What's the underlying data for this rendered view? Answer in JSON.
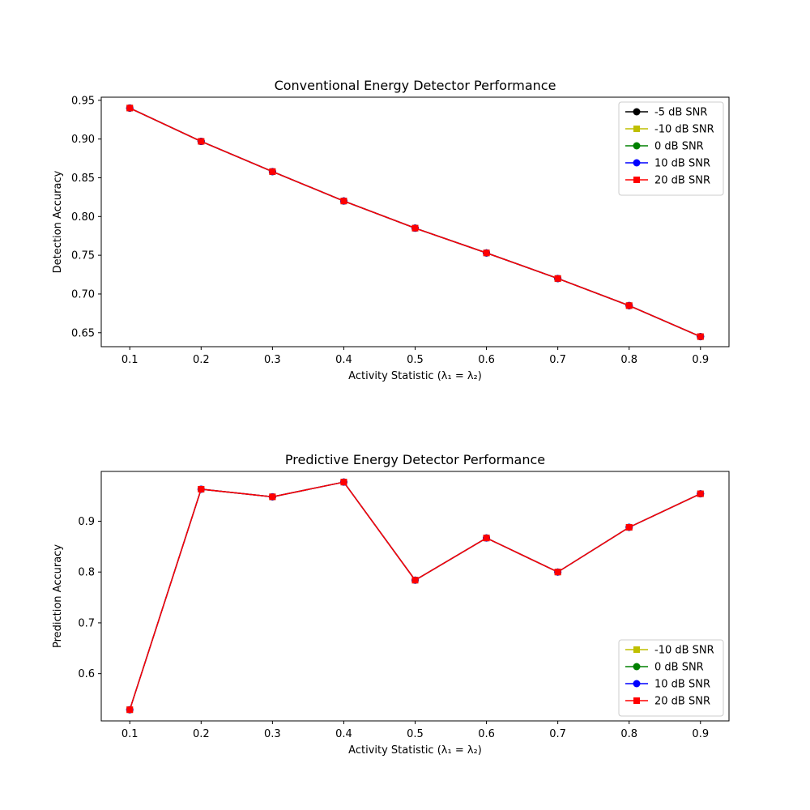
{
  "chart_data": [
    {
      "type": "line",
      "title": "Conventional Energy Detector Performance",
      "xlabel": "Activity Statistic (λ₁ = λ₂)",
      "ylabel": "Detection Accuracy",
      "x": [
        0.1,
        0.2,
        0.3,
        0.4,
        0.5,
        0.6,
        0.7,
        0.8,
        0.9
      ],
      "xlim": [
        0.06,
        0.94
      ],
      "ylim": [
        0.632,
        0.954
      ],
      "xticks": [
        "0.1",
        "0.2",
        "0.3",
        "0.4",
        "0.5",
        "0.6",
        "0.7",
        "0.8",
        "0.9"
      ],
      "yticks": [
        "0.65",
        "0.70",
        "0.75",
        "0.80",
        "0.85",
        "0.90",
        "0.95"
      ],
      "legend_position": "top-right",
      "grid": false,
      "series": [
        {
          "name": "-5 dB SNR",
          "color": "#000000",
          "marker": "circle",
          "values": [
            0.94,
            0.897,
            0.858,
            0.82,
            0.785,
            0.753,
            0.72,
            0.685,
            0.645
          ]
        },
        {
          "name": "-10 dB SNR",
          "color": "#bfbf00",
          "marker": "square",
          "values": [
            0.94,
            0.897,
            0.858,
            0.82,
            0.785,
            0.753,
            0.72,
            0.685,
            0.645
          ]
        },
        {
          "name": "0 dB SNR",
          "color": "#008000",
          "marker": "circle",
          "values": [
            0.94,
            0.897,
            0.858,
            0.82,
            0.785,
            0.753,
            0.72,
            0.685,
            0.645
          ]
        },
        {
          "name": "10 dB SNR",
          "color": "#0000ff",
          "marker": "circle",
          "values": [
            0.94,
            0.897,
            0.858,
            0.82,
            0.785,
            0.753,
            0.72,
            0.685,
            0.645
          ]
        },
        {
          "name": "20 dB SNR",
          "color": "#ff0000",
          "marker": "square",
          "values": [
            0.94,
            0.897,
            0.858,
            0.82,
            0.785,
            0.753,
            0.72,
            0.685,
            0.645
          ]
        }
      ]
    },
    {
      "type": "line",
      "title": "Predictive Energy Detector Performance",
      "xlabel": "Activity Statistic (λ₁ = λ₂)",
      "ylabel": "Prediction Accuracy",
      "x": [
        0.1,
        0.2,
        0.3,
        0.4,
        0.5,
        0.6,
        0.7,
        0.8,
        0.9
      ],
      "xlim": [
        0.06,
        0.94
      ],
      "ylim": [
        0.507,
        0.998
      ],
      "xticks": [
        "0.1",
        "0.2",
        "0.3",
        "0.4",
        "0.5",
        "0.6",
        "0.7",
        "0.8",
        "0.9"
      ],
      "yticks": [
        "0.6",
        "0.7",
        "0.8",
        "0.9"
      ],
      "legend_position": "lower-right",
      "grid": false,
      "series": [
        {
          "name": "-10 dB SNR",
          "color": "#bfbf00",
          "marker": "square",
          "values": [
            0.529,
            0.963,
            0.948,
            0.977,
            0.784,
            0.867,
            0.8,
            0.888,
            0.954
          ]
        },
        {
          "name": "0 dB SNR",
          "color": "#008000",
          "marker": "circle",
          "values": [
            0.529,
            0.963,
            0.948,
            0.977,
            0.784,
            0.867,
            0.8,
            0.888,
            0.954
          ]
        },
        {
          "name": "10 dB SNR",
          "color": "#0000ff",
          "marker": "circle",
          "values": [
            0.529,
            0.963,
            0.948,
            0.977,
            0.784,
            0.867,
            0.8,
            0.888,
            0.954
          ]
        },
        {
          "name": "20 dB SNR",
          "color": "#ff0000",
          "marker": "square",
          "values": [
            0.529,
            0.963,
            0.948,
            0.977,
            0.784,
            0.867,
            0.8,
            0.888,
            0.954
          ]
        }
      ]
    }
  ]
}
